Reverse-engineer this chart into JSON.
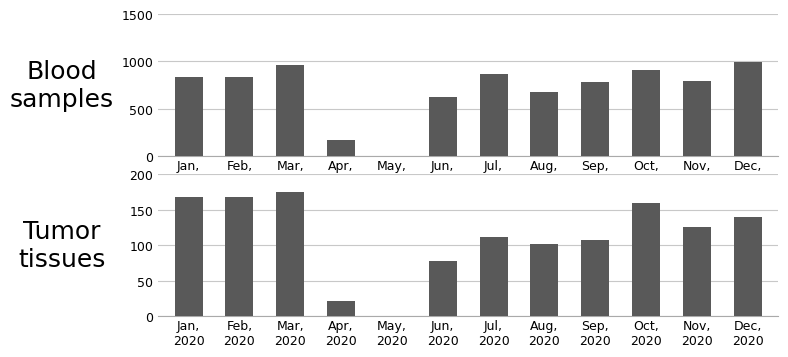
{
  "months": [
    "Jan,\n2020",
    "Feb,\n2020",
    "Mar,\n2020",
    "Apr,\n2020",
    "May,\n2020",
    "Jun,\n2020",
    "Jul,\n2020",
    "Aug,\n2020",
    "Sep,\n2020",
    "Oct,\n2020",
    "Nov,\n2020",
    "Dec,\n2020"
  ],
  "blood_values": [
    840,
    840,
    960,
    170,
    0,
    620,
    870,
    680,
    780,
    910,
    790,
    990
  ],
  "tumor_values": [
    168,
    168,
    175,
    22,
    0,
    78,
    112,
    102,
    107,
    160,
    126,
    140
  ],
  "bar_color": "#595959",
  "blood_ylim": [
    0,
    1500
  ],
  "blood_yticks": [
    0,
    500,
    1000,
    1500
  ],
  "tumor_ylim": [
    0,
    200
  ],
  "tumor_yticks": [
    0,
    50,
    100,
    150,
    200
  ],
  "blood_label": "Blood\nsamples",
  "tumor_label": "Tumor\ntissues",
  "label_fontsize": 18,
  "tick_fontsize": 9,
  "grid_color": "#c8c8c8",
  "bottom_spine_color": "#aaaaaa"
}
